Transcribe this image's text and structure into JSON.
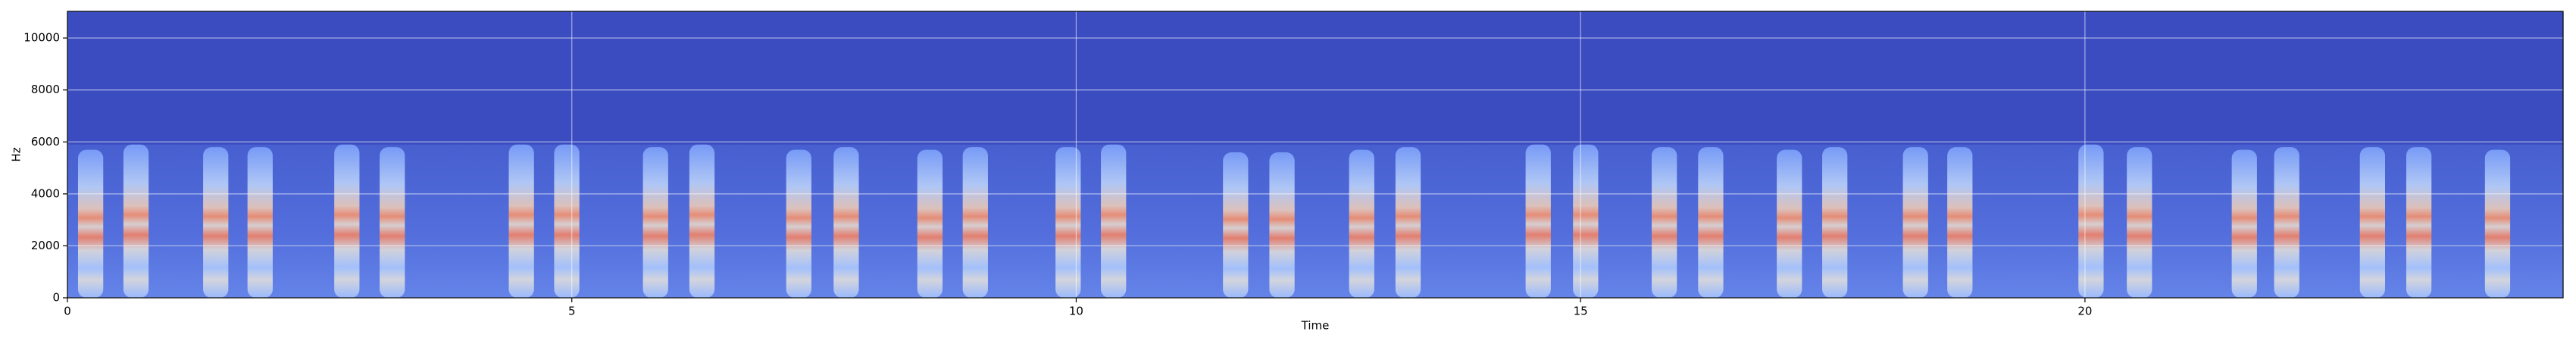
{
  "chart_data": {
    "type": "spectrogram",
    "x_label": "Time",
    "y_label": "Hz",
    "x": [
      0.23,
      0.68,
      1.47,
      1.91,
      2.77,
      3.22,
      4.5,
      4.95,
      5.83,
      6.29,
      7.25,
      7.72,
      8.55,
      9.0,
      9.92,
      10.37,
      11.58,
      12.04,
      12.83,
      13.29,
      14.58,
      15.05,
      15.83,
      16.29,
      17.07,
      17.52,
      18.32,
      18.76,
      20.06,
      20.54,
      21.58,
      22.0,
      22.85,
      23.31,
      24.09
    ],
    "values": [
      5700,
      5900,
      5800,
      5800,
      5900,
      5800,
      5900,
      5900,
      5800,
      5900,
      5700,
      5800,
      5700,
      5800,
      5800,
      5900,
      5600,
      5600,
      5700,
      5800,
      5900,
      5900,
      5800,
      5800,
      5700,
      5800,
      5800,
      5800,
      5900,
      5800,
      5700,
      5800,
      5800,
      5800,
      5700
    ],
    "xlim": [
      0,
      24.74
    ],
    "ylim": [
      0,
      11025
    ],
    "xticks": [
      0,
      5,
      10,
      15,
      20
    ],
    "yticks": [
      0,
      2000,
      4000,
      6000,
      8000,
      10000
    ],
    "grid": true
  }
}
